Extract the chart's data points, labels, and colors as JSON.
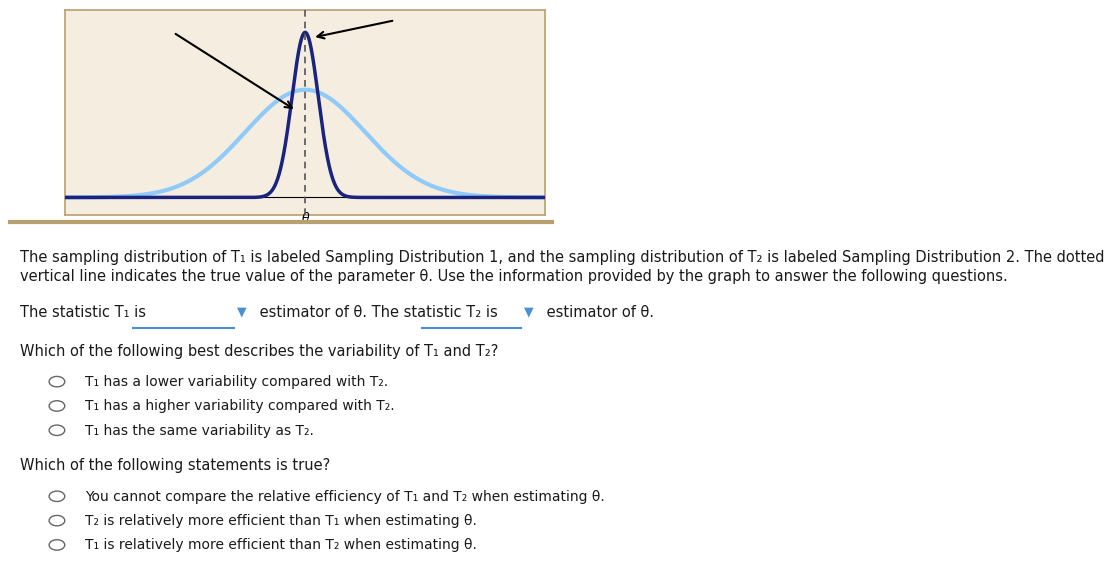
{
  "fig_width": 10.43,
  "fig_height": 6.95,
  "graph_bg_color": "#f5ede0",
  "graph_border_color": "#b8a070",
  "dist1_color": "#1a237e",
  "dist2_color": "#90caf9",
  "vline_color": "#555555",
  "theta_label": "θ",
  "dist1_mu": 0.0,
  "dist1_sigma": 0.22,
  "dist2_mu": 0.0,
  "dist2_sigma": 1.0,
  "x_range": [
    -4,
    4
  ],
  "description_line1": "The sampling distribution of T₁ is labeled Sampling Distribution 1, and the sampling distribution of T₂ is labeled Sampling Distribution 2. The dotted",
  "description_line2": "vertical line indicates the true value of the parameter θ. Use the information provided by the graph to answer the following questions.",
  "q1_prefix": "The statistic T₁ is",
  "q1_mid": "estimator of θ. The statistic T₂ is",
  "q1_end": "estimator of θ.",
  "q2_header": "Which of the following best describes the variability of T₁ and T₂?",
  "q2_options": [
    "T₁ has a lower variability compared with T₂.",
    "T₁ has a higher variability compared with T₂.",
    "T₁ has the same variability as T₂."
  ],
  "q3_header": "Which of the following statements is true?",
  "q3_options": [
    "You cannot compare the relative efficiency of T₁ and T₂ when estimating θ.",
    "T₂ is relatively more efficient than T₁ when estimating θ.",
    "T₁ is relatively more efficient than T₂ when estimating θ."
  ],
  "separator_color": "#b8a070",
  "text_color": "#1a1a1a",
  "dropdown_color": "#4a90d9",
  "radio_color": "#666666",
  "font_size_body": 10.5,
  "font_size_options": 10.0
}
